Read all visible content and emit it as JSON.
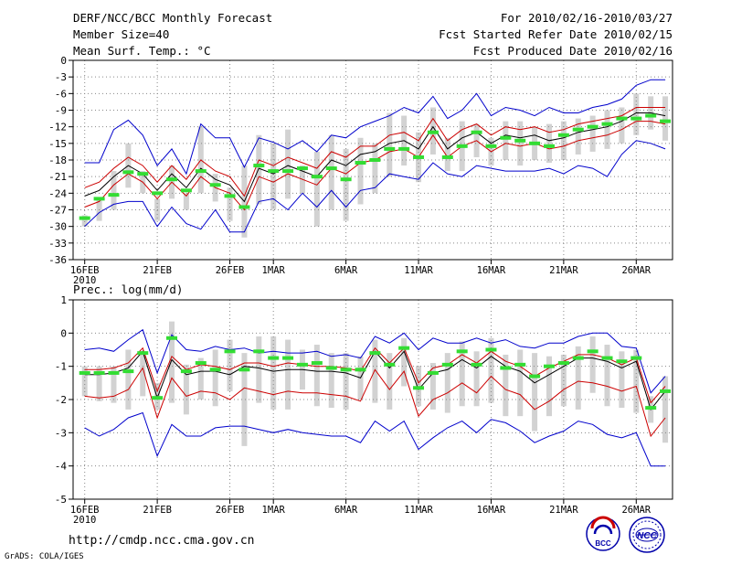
{
  "header": {
    "title": "DERF/NCC/BCC Monthly Forecast",
    "member_size": "Member Size=40",
    "variable": "Mean Surf. Temp.: °C",
    "period": "For 2010/02/16-2010/03/27",
    "start_date": "Fcst Started Refer Date 2010/02/15",
    "produced_date": "Fcst Produced Date 2010/02/16"
  },
  "footer": {
    "url": "http://cmdp.ncc.cma.gov.cn",
    "grads": "GrADS: COLA/IGES",
    "logo_bcc": "BCC",
    "logo_ncc": "NCC"
  },
  "colors": {
    "blue": "#0000cc",
    "red": "#cc0000",
    "black": "#000000",
    "green": "#33dd33",
    "bar": "#d2d2d2",
    "grid": "#888888"
  },
  "chart_data": [
    {
      "type": "box",
      "name": "temperature",
      "ylabel": "Mean Surf. Temp.: °C",
      "ylim": [
        -36,
        0
      ],
      "yticks": [
        0,
        -3,
        -6,
        -9,
        -12,
        -15,
        -18,
        -21,
        -24,
        -27,
        -30,
        -33,
        -36
      ],
      "ytick_labels": [
        "0",
        "-3",
        "-6",
        "-9",
        "-12",
        "-15",
        "-18",
        "-21",
        "-24",
        "-27",
        "-30",
        "-33",
        "-36"
      ],
      "xlim": [
        -0.8,
        40.5
      ],
      "xticks": [
        0,
        5,
        10,
        13,
        18,
        23,
        28,
        33,
        38
      ],
      "xtick_labels": [
        "16FEB",
        "21FEB",
        "26FEB",
        "1MAR",
        "6MAR",
        "11MAR",
        "16MAR",
        "21MAR",
        "26MAR"
      ],
      "xtick_sublabel": "2010",
      "grid": true,
      "series": [
        {
          "name": "max",
          "color": "blue",
          "values": [
            -18.5,
            -18.5,
            -12.5,
            -10.8,
            -13.5,
            -19.0,
            -16.0,
            -20.5,
            -11.5,
            -14.0,
            -14.0,
            -19.3,
            -14.0,
            -14.8,
            -16.0,
            -14.5,
            -16.5,
            -13.5,
            -14.0,
            -12.0,
            -11.0,
            -10.0,
            -8.5,
            -9.5,
            -6.5,
            -10.5,
            -9.0,
            -6.0,
            -10.0,
            -8.5,
            -9.0,
            -10.0,
            -8.5,
            -9.5,
            -9.5,
            -8.5,
            -8.0,
            -7.0,
            -4.5,
            -3.5,
            -3.5
          ]
        },
        {
          "name": "ens_upper",
          "color": "red",
          "values": [
            -23.0,
            -22.0,
            -19.5,
            -17.5,
            -19.0,
            -22.0,
            -19.0,
            -21.5,
            -18.0,
            -20.0,
            -21.0,
            -24.5,
            -18.0,
            -19.0,
            -17.5,
            -18.5,
            -19.5,
            -16.5,
            -17.5,
            -15.5,
            -15.5,
            -13.5,
            -13.0,
            -14.5,
            -10.5,
            -14.5,
            -12.5,
            -11.5,
            -13.5,
            -12.0,
            -12.5,
            -12.0,
            -13.0,
            -12.5,
            -11.5,
            -11.0,
            -10.5,
            -10.0,
            -8.5,
            -8.5,
            -8.5
          ]
        },
        {
          "name": "ens_mean",
          "color": "black",
          "values": [
            -24.5,
            -23.5,
            -21.0,
            -19.0,
            -20.5,
            -23.5,
            -20.5,
            -23.0,
            -19.5,
            -21.5,
            -22.5,
            -25.5,
            -19.5,
            -20.5,
            -19.0,
            -20.0,
            -21.0,
            -18.0,
            -19.0,
            -17.0,
            -16.5,
            -15.0,
            -14.5,
            -16.0,
            -12.0,
            -16.0,
            -14.0,
            -13.0,
            -15.0,
            -13.5,
            -14.0,
            -13.5,
            -14.5,
            -14.0,
            -13.0,
            -12.5,
            -12.0,
            -11.0,
            -9.5,
            -9.5,
            -10.0
          ]
        },
        {
          "name": "ens_lower",
          "color": "red",
          "values": [
            -26.5,
            -25.5,
            -22.5,
            -20.5,
            -22.0,
            -25.0,
            -22.0,
            -24.5,
            -21.0,
            -23.0,
            -24.0,
            -27.0,
            -21.0,
            -22.0,
            -20.5,
            -21.5,
            -22.5,
            -19.5,
            -20.5,
            -18.5,
            -18.0,
            -16.5,
            -16.0,
            -17.5,
            -13.5,
            -17.5,
            -15.5,
            -14.5,
            -16.5,
            -15.0,
            -15.5,
            -15.0,
            -16.0,
            -15.5,
            -14.5,
            -14.0,
            -13.5,
            -12.5,
            -11.0,
            -11.0,
            -11.5
          ]
        },
        {
          "name": "min",
          "color": "blue",
          "values": [
            -30.0,
            -27.5,
            -26.0,
            -25.5,
            -25.5,
            -30.0,
            -26.5,
            -29.5,
            -30.5,
            -27.0,
            -31.0,
            -31.0,
            -25.5,
            -25.0,
            -27.0,
            -24.0,
            -26.5,
            -23.5,
            -26.5,
            -23.5,
            -23.0,
            -20.5,
            -21.0,
            -21.5,
            -18.5,
            -20.5,
            -21.0,
            -19.0,
            -19.5,
            -20.0,
            -20.0,
            -20.0,
            -19.5,
            -20.5,
            -19.0,
            -19.5,
            -21.0,
            -17.0,
            -14.5,
            -15.0,
            -16.0
          ]
        },
        {
          "name": "observed",
          "color": "green",
          "values": [
            -28.5,
            -25.0,
            -24.3,
            -20.2,
            -20.5,
            -24.0,
            -21.5,
            -23.5,
            -20.0,
            -22.5,
            -24.5,
            -26.5,
            -19.0,
            -20.0,
            -20.0,
            -19.5,
            -21.0,
            -19.5,
            -21.5,
            -18.5,
            -18.0,
            -16.0,
            -16.0,
            -17.5,
            -13.0,
            -17.5,
            -15.5,
            -13.0,
            -15.5,
            -14.0,
            -14.5,
            -15.0,
            -15.5,
            -13.5,
            -12.5,
            -12.0,
            -11.5,
            -10.5,
            -10.5,
            -10.0,
            -11.0
          ]
        },
        {
          "name": "bar_high",
          "color": "bar",
          "values": [
            -28.0,
            -25.0,
            -20.0,
            -15.0,
            -20.0,
            -25.0,
            -19.0,
            -24.0,
            -12.0,
            -20.5,
            -23.0,
            -19.0,
            -13.5,
            -15.0,
            -12.5,
            -19.0,
            -16.5,
            -13.5,
            -16.0,
            -14.0,
            -15.0,
            -9.5,
            -10.0,
            -13.0,
            -8.5,
            -14.0,
            -11.0,
            -11.5,
            -14.0,
            -11.0,
            -11.0,
            -12.0,
            -11.5,
            -11.0,
            -10.5,
            -10.0,
            -9.0,
            -8.5,
            -6.0,
            -6.5,
            -6.5
          ]
        },
        {
          "name": "bar_low",
          "color": "bar",
          "values": [
            -30.0,
            -29.0,
            -27.0,
            -23.0,
            -24.0,
            -29.0,
            -25.0,
            -27.0,
            -24.0,
            -25.5,
            -29.0,
            -32.0,
            -26.0,
            -27.0,
            -25.0,
            -24.0,
            -30.0,
            -27.0,
            -29.0,
            -26.0,
            -24.0,
            -21.0,
            -19.0,
            -22.0,
            -17.0,
            -20.0,
            -20.0,
            -17.5,
            -19.0,
            -18.0,
            -19.0,
            -18.0,
            -18.5,
            -18.0,
            -17.0,
            -16.5,
            -16.0,
            -15.0,
            -13.5,
            -12.5,
            -14.5
          ]
        }
      ]
    },
    {
      "type": "box",
      "name": "precipitation",
      "ylabel": "Prec.: log(mm/d)",
      "ylim": [
        -5,
        1
      ],
      "yticks": [
        1,
        0,
        -1,
        -2,
        -3,
        -4,
        -5
      ],
      "ytick_labels": [
        "1",
        "0",
        "-1",
        "-2",
        "-3",
        "-4",
        "-5"
      ],
      "xlim": [
        -0.8,
        40.5
      ],
      "xticks": [
        0,
        5,
        10,
        13,
        18,
        23,
        28,
        33,
        38
      ],
      "xtick_labels": [
        "16FEB",
        "21FEB",
        "26FEB",
        "1MAR",
        "6MAR",
        "11MAR",
        "16MAR",
        "21MAR",
        "26MAR"
      ],
      "xtick_sublabel": "2010",
      "grid": true,
      "series": [
        {
          "name": "max",
          "color": "blue",
          "values": [
            -0.5,
            -0.45,
            -0.55,
            -0.2,
            0.1,
            -1.2,
            -0.05,
            -0.5,
            -0.55,
            -0.4,
            -0.5,
            -0.45,
            -0.6,
            -0.55,
            -0.6,
            -0.6,
            -0.55,
            -0.7,
            -0.65,
            -0.75,
            -0.1,
            -0.3,
            0.0,
            -0.5,
            -0.15,
            -0.3,
            -0.3,
            -0.15,
            -0.3,
            -0.2,
            -0.4,
            -0.45,
            -0.3,
            -0.3,
            -0.1,
            0.0,
            0.0,
            -0.4,
            -0.45,
            -1.8,
            -1.3
          ]
        },
        {
          "name": "ens_upper",
          "color": "red",
          "values": [
            -1.1,
            -1.1,
            -1.05,
            -0.9,
            -0.45,
            -1.75,
            -0.7,
            -1.1,
            -0.95,
            -1.0,
            -1.1,
            -0.9,
            -0.9,
            -1.0,
            -0.9,
            -0.95,
            -1.0,
            -1.0,
            -1.05,
            -1.15,
            -0.45,
            -0.9,
            -0.45,
            -1.5,
            -1.05,
            -0.95,
            -0.65,
            -0.9,
            -0.55,
            -0.85,
            -1.0,
            -1.3,
            -1.05,
            -0.85,
            -0.65,
            -0.65,
            -0.75,
            -0.95,
            -0.75,
            -2.1,
            -1.6
          ]
        },
        {
          "name": "ens_mean",
          "color": "black",
          "values": [
            -1.25,
            -1.25,
            -1.2,
            -1.05,
            -0.55,
            -1.95,
            -0.8,
            -1.25,
            -1.15,
            -1.15,
            -1.25,
            -1.0,
            -1.05,
            -1.15,
            -1.1,
            -1.1,
            -1.15,
            -1.15,
            -1.2,
            -1.35,
            -0.55,
            -1.05,
            -0.55,
            -1.7,
            -1.2,
            -1.1,
            -0.8,
            -1.05,
            -0.7,
            -1.0,
            -1.15,
            -1.5,
            -1.25,
            -1.0,
            -0.75,
            -0.75,
            -0.85,
            -1.05,
            -0.85,
            -2.3,
            -1.75
          ]
        },
        {
          "name": "ens_lower",
          "color": "red",
          "values": [
            -1.9,
            -1.95,
            -1.9,
            -1.7,
            -1.05,
            -2.55,
            -1.35,
            -1.9,
            -1.75,
            -1.8,
            -2.0,
            -1.65,
            -1.75,
            -1.85,
            -1.75,
            -1.8,
            -1.8,
            -1.85,
            -1.9,
            -2.05,
            -1.1,
            -1.7,
            -1.15,
            -2.5,
            -2.0,
            -1.8,
            -1.5,
            -1.8,
            -1.3,
            -1.7,
            -1.85,
            -2.3,
            -2.05,
            -1.7,
            -1.45,
            -1.5,
            -1.6,
            -1.75,
            -1.6,
            -3.1,
            -2.55
          ]
        },
        {
          "name": "min",
          "color": "blue",
          "values": [
            -2.85,
            -3.1,
            -2.9,
            -2.55,
            -2.4,
            -3.7,
            -2.75,
            -3.1,
            -3.1,
            -2.85,
            -2.8,
            -2.8,
            -2.9,
            -3.0,
            -2.9,
            -3.0,
            -3.05,
            -3.1,
            -3.1,
            -3.3,
            -2.65,
            -2.95,
            -2.65,
            -3.5,
            -3.15,
            -2.85,
            -2.65,
            -3.0,
            -2.6,
            -2.7,
            -2.95,
            -3.3,
            -3.1,
            -2.95,
            -2.65,
            -2.75,
            -3.05,
            -3.15,
            -3.0,
            -4.0,
            -4.0
          ]
        },
        {
          "name": "observed",
          "color": "green",
          "values": [
            -1.2,
            -1.2,
            -1.2,
            -1.15,
            -0.6,
            -1.95,
            -0.15,
            -1.15,
            -0.9,
            -1.1,
            -0.55,
            -1.1,
            -0.55,
            -0.75,
            -0.75,
            -0.95,
            -0.9,
            -1.05,
            -1.1,
            -1.1,
            -0.6,
            -0.95,
            -0.45,
            -1.65,
            -1.2,
            -0.95,
            -0.55,
            -0.95,
            -0.5,
            -1.05,
            -0.95,
            -1.3,
            -1.0,
            -0.9,
            -0.75,
            -0.55,
            -0.75,
            -0.85,
            -0.75,
            -2.25,
            -1.75
          ]
        },
        {
          "name": "bar_high",
          "color": "bar",
          "values": [
            -1.0,
            -1.0,
            -1.0,
            -0.5,
            -0.6,
            -1.5,
            0.35,
            -0.95,
            -0.75,
            -0.5,
            -0.2,
            -0.6,
            -0.1,
            -0.1,
            -0.2,
            -0.5,
            -0.35,
            -0.6,
            -0.6,
            -0.7,
            -0.2,
            -0.6,
            -0.15,
            -1.0,
            -0.9,
            -0.6,
            -0.25,
            -0.55,
            -0.15,
            -0.65,
            -0.5,
            -0.6,
            -0.7,
            -0.65,
            -0.4,
            -0.1,
            -0.35,
            -0.55,
            -0.5,
            -1.9,
            -1.3
          ]
        },
        {
          "name": "bar_low",
          "color": "bar",
          "values": [
            -1.9,
            -2.05,
            -2.1,
            -2.3,
            -1.9,
            -2.3,
            -2.1,
            -2.45,
            -2.0,
            -2.2,
            -1.75,
            -3.4,
            -2.1,
            -2.3,
            -2.3,
            -1.7,
            -2.2,
            -2.25,
            -2.3,
            -2.0,
            -2.1,
            -2.3,
            -1.6,
            -2.2,
            -2.3,
            -2.4,
            -2.2,
            -2.2,
            -2.1,
            -2.5,
            -2.5,
            -2.95,
            -2.5,
            -2.2,
            -2.3,
            -1.8,
            -2.2,
            -2.25,
            -2.4,
            -2.7,
            -3.3
          ]
        }
      ]
    }
  ]
}
